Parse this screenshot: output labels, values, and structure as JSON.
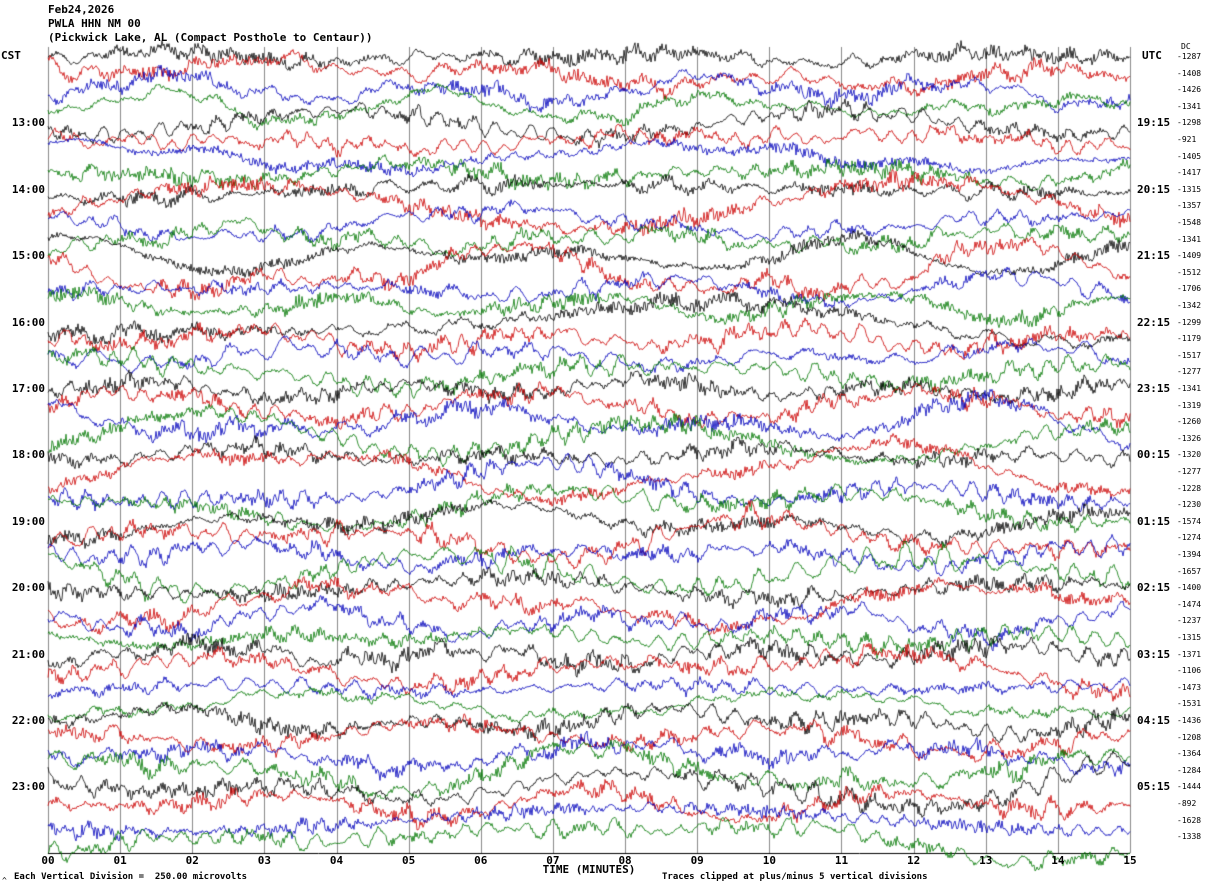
{
  "header": {
    "date": "Feb24,2026",
    "station": "PWLA HHN NM 00",
    "location": "(Pickwick Lake, AL (Compact Posthole to Centaur))"
  },
  "axes": {
    "left_timezone": "CST",
    "right_timezone": "UTC",
    "dc_label": "DC",
    "x_title": "TIME (MINUTES)"
  },
  "footer": {
    "scale_note": "Each Vertical Division =  250.00 microvolts",
    "clip_note": "Traces clipped at plus/minus 5 vertical divisions",
    "corner_mark": "^"
  },
  "chart_data": {
    "type": "line",
    "subtype": "helicorder_seismogram",
    "title": "PWLA HHN NM 00 (Pickwick Lake, AL (Compact Posthole to Centaur))",
    "date": "Feb24,2026",
    "xlabel": "TIME (MINUTES)",
    "x_range_minutes": [
      0,
      15
    ],
    "x_tick_labels": [
      "00",
      "01",
      "02",
      "03",
      "04",
      "05",
      "06",
      "07",
      "08",
      "09",
      "10",
      "11",
      "12",
      "13",
      "14",
      "15"
    ],
    "minutes_per_row": 15,
    "row_count": 48,
    "trace_colors": [
      "#000000",
      "#cc0000",
      "#0000bb",
      "#007700"
    ],
    "grid_color": "#888888",
    "microvolts_per_division": "250.00",
    "clip_divisions": 5,
    "hour_rows": [
      {
        "row": 4,
        "cst": "13:00",
        "utc": "19:15"
      },
      {
        "row": 8,
        "cst": "14:00",
        "utc": "20:15"
      },
      {
        "row": 12,
        "cst": "15:00",
        "utc": "21:15"
      },
      {
        "row": 16,
        "cst": "16:00",
        "utc": "22:15"
      },
      {
        "row": 20,
        "cst": "17:00",
        "utc": "23:15"
      },
      {
        "row": 24,
        "cst": "18:00",
        "utc": "00:15"
      },
      {
        "row": 28,
        "cst": "19:00",
        "utc": "01:15"
      },
      {
        "row": 32,
        "cst": "20:00",
        "utc": "02:15"
      },
      {
        "row": 36,
        "cst": "21:00",
        "utc": "03:15"
      },
      {
        "row": 40,
        "cst": "22:00",
        "utc": "04:15"
      },
      {
        "row": 44,
        "cst": "23:00",
        "utc": "05:15"
      }
    ],
    "dc_offsets": [
      -1287,
      -1408,
      -1426,
      -1341,
      -1298,
      -921,
      -1405,
      -1417,
      -1315,
      -1357,
      -1548,
      -1341,
      -1409,
      -1512,
      -1706,
      -1342,
      -1299,
      -1179,
      -1517,
      -1277,
      -1341,
      -1319,
      -1260,
      -1326,
      -1320,
      -1277,
      -1228,
      -1230,
      -1574,
      -1274,
      -1394,
      -1657,
      -1400,
      -1474,
      -1237,
      -1315,
      -1371,
      -1106,
      -1473,
      -1531,
      -1436,
      -1208,
      -1364,
      -1284,
      -1444,
      -892,
      -1628,
      -1338
    ]
  }
}
